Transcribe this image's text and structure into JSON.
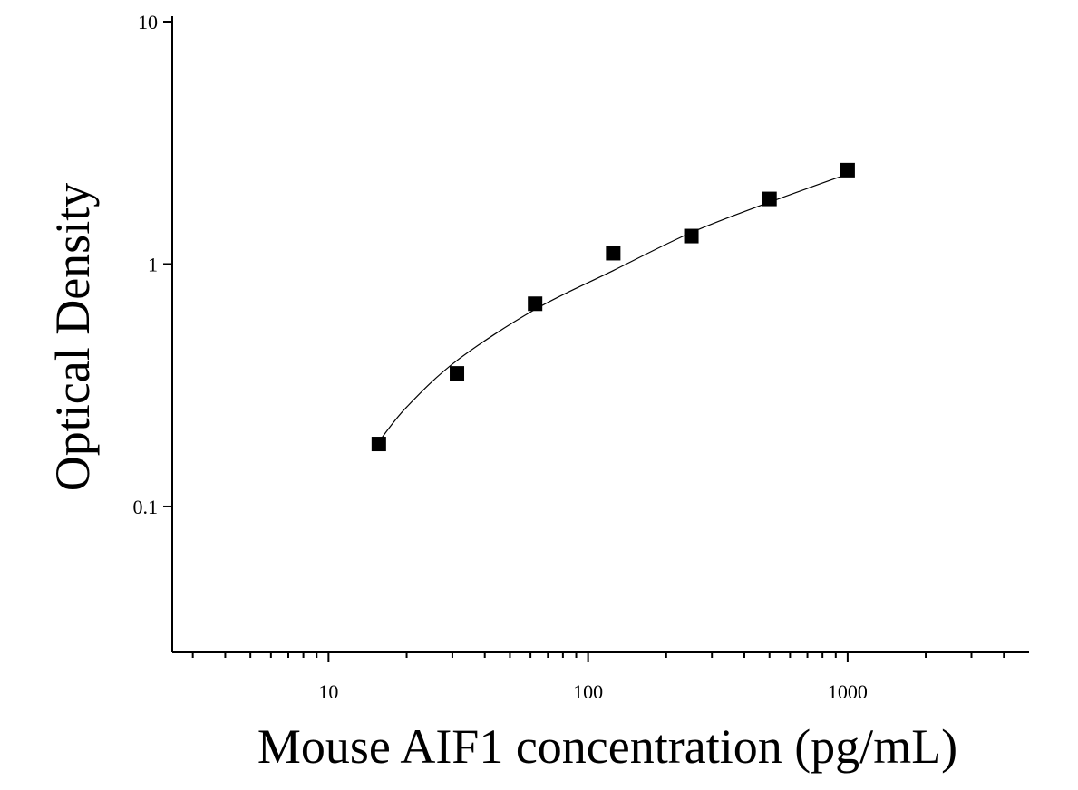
{
  "chart_data": {
    "type": "scatter",
    "x_label": "Mouse AIF1 concentration (pg/mL)",
    "y_label": "Optical Density",
    "x_log": true,
    "y_log": true,
    "xlim": [
      2.5,
      5000
    ],
    "ylim": [
      0.025,
      10
    ],
    "xticks": [
      10,
      100,
      1000
    ],
    "xminorticks": [
      3,
      4,
      5,
      6,
      7,
      8,
      9,
      20,
      30,
      40,
      50,
      60,
      70,
      80,
      90,
      200,
      300,
      400,
      500,
      600,
      700,
      800,
      900,
      2000,
      3000,
      4000
    ],
    "yticks": [
      0.1,
      1,
      10
    ],
    "series": [
      {
        "color": "#000000",
        "marker": "square",
        "x": [
          15.625,
          31.25,
          62.5,
          125,
          250,
          500,
          1000
        ],
        "values": [
          0.181,
          0.354,
          0.686,
          1.109,
          1.305,
          1.857,
          2.44
        ]
      }
    ],
    "fit": {
      "color": "#000000",
      "x": [
        15.625,
        20,
        31.25,
        62.5,
        125,
        250,
        500,
        1000
      ],
      "values": [
        0.185,
        0.257,
        0.4,
        0.65,
        0.94,
        1.35,
        1.8,
        2.35
      ]
    }
  }
}
